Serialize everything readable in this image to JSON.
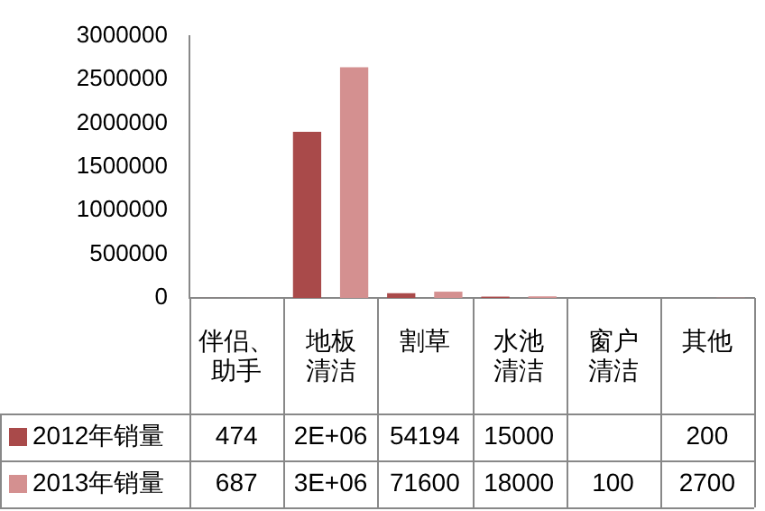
{
  "chart_data": {
    "type": "bar",
    "categories": [
      "伴侣、助手",
      "地板清洁",
      "割草",
      "水池清洁",
      "窗户清洁",
      "其他"
    ],
    "series": [
      {
        "name": "2012年销量",
        "color": "#a94a4a",
        "values": [
          474,
          1900000,
          54194,
          15000,
          null,
          200
        ],
        "value_labels": [
          "474",
          "2E+06",
          "54194",
          "15000",
          null,
          "200"
        ]
      },
      {
        "name": "2013年销量",
        "color": "#d49090",
        "values": [
          687,
          2640000,
          71600,
          18000,
          100,
          2700
        ],
        "value_labels": [
          "687",
          "3E+06",
          "71600",
          "18000",
          "100",
          "2700"
        ]
      }
    ],
    "ylim": [
      0,
      3000000
    ],
    "yticks": [
      0,
      500000,
      1000000,
      1500000,
      2000000,
      2500000,
      3000000
    ],
    "grid": false,
    "legend": "bottom left"
  }
}
